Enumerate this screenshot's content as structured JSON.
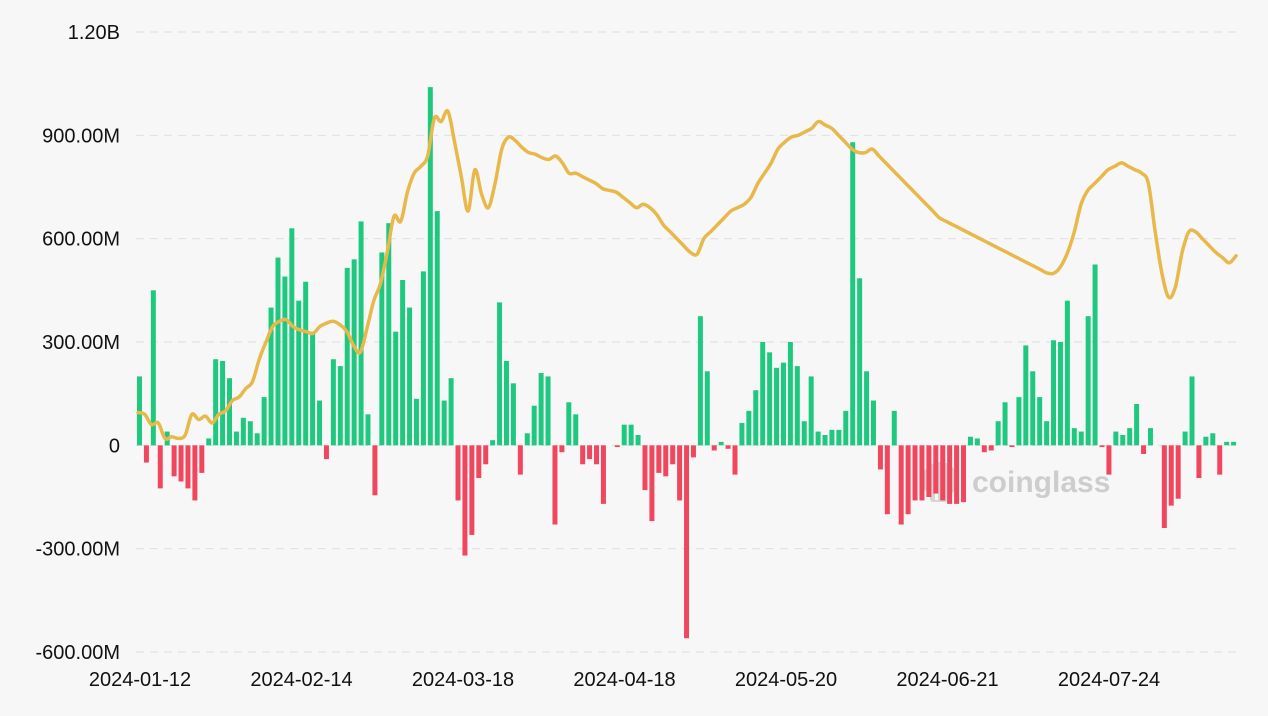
{
  "chart_data": {
    "type": "bar",
    "xlabel": "",
    "ylabel": "",
    "x_tick_labels": [
      "2024-01-12",
      "2024-02-14",
      "2024-03-18",
      "2024-04-18",
      "2024-05-20",
      "2024-06-21",
      "2024-07-24"
    ],
    "y_tick_labels": [
      "1.20B",
      "900.00M",
      "600.00M",
      "300.00M",
      "0",
      "-300.00M",
      "-600.00M"
    ],
    "ylim": [
      -600000000,
      1200000000
    ],
    "grid": true,
    "colors": {
      "positive": "#1ec97f",
      "negative": "#f0475e",
      "line": "#e8b84a",
      "watermark": "#c9c9c9"
    },
    "watermark": "coinglass",
    "series": [
      {
        "kind": "bar",
        "values": [
          200,
          -50,
          450,
          -125,
          40,
          -90,
          -105,
          -125,
          -160,
          -80,
          20,
          250,
          245,
          195,
          40,
          80,
          70,
          35,
          140,
          400,
          545,
          490,
          630,
          420,
          475,
          330,
          130,
          -40,
          250,
          230,
          515,
          540,
          650,
          90,
          -145,
          560,
          645,
          330,
          480,
          400,
          135,
          505,
          1040,
          680,
          130,
          195,
          -160,
          -320,
          -260,
          -95,
          -55,
          15,
          415,
          245,
          180,
          -85,
          35,
          115,
          210,
          200,
          -230,
          -20,
          125,
          90,
          -55,
          -40,
          -55,
          -170,
          0,
          -5,
          60,
          60,
          30,
          -130,
          -220,
          -80,
          -90,
          -55,
          -160,
          -560,
          -35,
          375,
          215,
          -15,
          10,
          -10,
          -85,
          65,
          100,
          160,
          300,
          270,
          225,
          240,
          300,
          230,
          70,
          200,
          40,
          30,
          45,
          45,
          100,
          880,
          485,
          215,
          130,
          -70,
          -200,
          100,
          -230,
          -200,
          -160,
          -160,
          -150,
          -140,
          -160,
          -170,
          -170,
          -165,
          25,
          20,
          -20,
          -15,
          70,
          125,
          -5,
          140,
          290,
          215,
          140,
          70,
          305,
          300,
          420,
          50,
          40,
          375,
          525,
          -5,
          -85,
          40,
          30,
          50,
          120,
          -25,
          50,
          0,
          -240,
          -175,
          -155,
          40,
          200,
          -95,
          25,
          35,
          -85,
          10,
          10
        ],
        "x_start": "2024-01-12",
        "x_step_days": 1.45
      },
      {
        "kind": "line",
        "values": [
          95,
          90,
          60,
          65,
          20,
          25,
          20,
          30,
          90,
          75,
          85,
          65,
          90,
          100,
          130,
          140,
          165,
          185,
          250,
          300,
          345,
          360,
          365,
          345,
          335,
          330,
          325,
          345,
          355,
          360,
          350,
          330,
          290,
          270,
          340,
          420,
          470,
          560,
          665,
          650,
          735,
          790,
          810,
          840,
          950,
          940,
          970,
          880,
          780,
          680,
          800,
          730,
          690,
          760,
          860,
          895,
          885,
          865,
          850,
          845,
          835,
          830,
          840,
          820,
          790,
          790,
          780,
          770,
          760,
          745,
          740,
          735,
          720,
          705,
          690,
          700,
          690,
          670,
          640,
          620,
          600,
          580,
          560,
          555,
          600,
          620,
          640,
          660,
          680,
          690,
          700,
          720,
          760,
          790,
          820,
          860,
          880,
          895,
          900,
          910,
          920,
          940,
          930,
          920,
          900,
          880,
          860,
          850,
          850,
          860,
          840,
          820,
          800,
          780,
          760,
          740,
          720,
          700,
          680,
          660,
          650,
          640,
          630,
          620,
          610,
          600,
          590,
          580,
          570,
          560,
          550,
          540,
          530,
          520,
          510,
          500,
          500,
          520,
          560,
          620,
          700,
          740,
          760,
          780,
          800,
          810,
          820,
          810,
          800,
          790,
          760,
          620,
          500,
          430,
          460,
          560,
          620,
          620,
          600,
          580,
          560,
          545,
          530,
          550
        ]
      }
    ]
  }
}
